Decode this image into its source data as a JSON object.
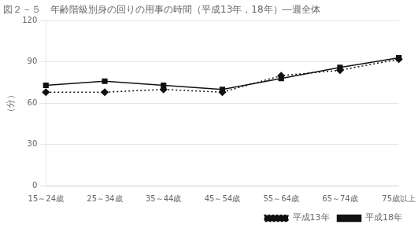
{
  "chart_data": {
    "type": "line",
    "title": "図２－５　年齢階級別身の回りの用事の時間（平成13年，18年）―週全体",
    "y_label": "（分）",
    "categories": [
      "15～24歳",
      "25～34歳",
      "35～44歳",
      "45～54歳",
      "55～64歳",
      "65～74歳",
      "75歳以上"
    ],
    "series": [
      {
        "name": "平成13年",
        "color": "#111111",
        "line_style": "dotted",
        "marker": "diamond",
        "values": [
          68,
          68,
          70,
          68,
          80,
          84,
          92
        ]
      },
      {
        "name": "平成18年",
        "color": "#111111",
        "line_style": "solid",
        "marker": "square",
        "values": [
          73,
          76,
          73,
          70,
          78,
          86,
          93
        ]
      }
    ],
    "ylim": [
      0,
      120
    ],
    "yticks": [
      0,
      30,
      60,
      90,
      120
    ],
    "grid": true,
    "legend": "lower right"
  }
}
